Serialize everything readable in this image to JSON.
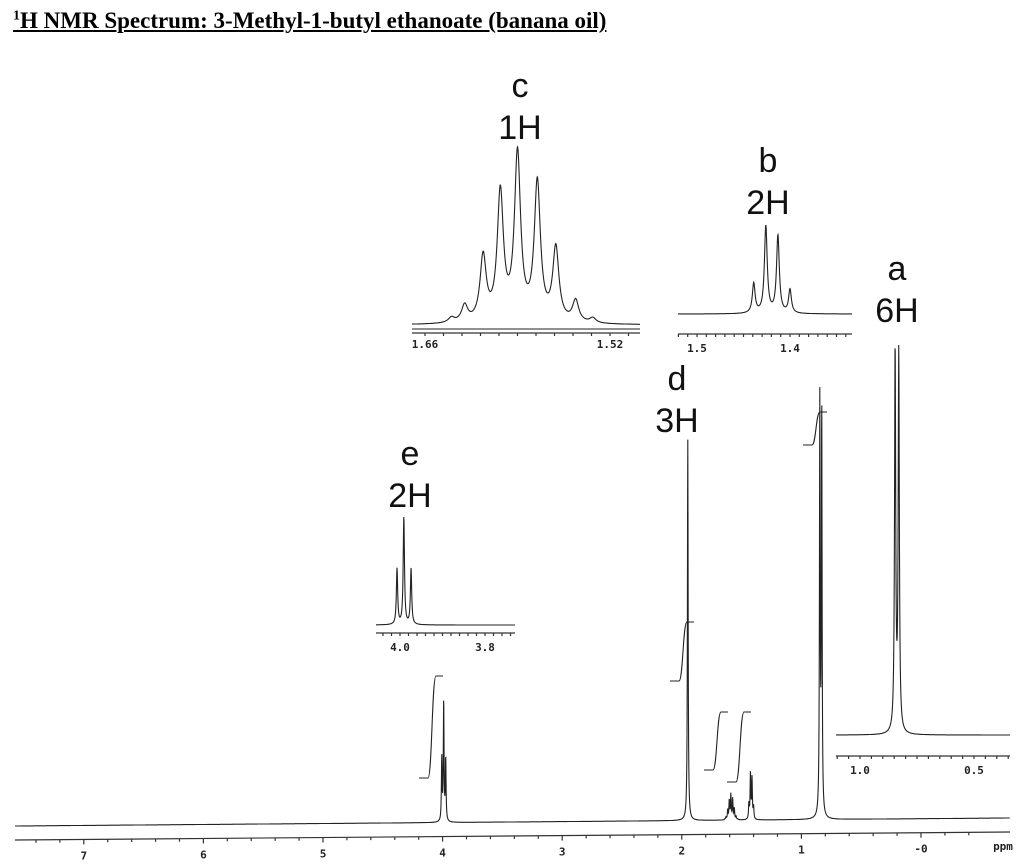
{
  "chart_data": {
    "type": "line",
    "title_sup": "1",
    "title": "H NMR Spectrum: 3-Methyl-1-butyl ethanoate (banana oil)",
    "xlabel": "ppm",
    "x_axis": {
      "reversed": true,
      "range": [
        7.7,
        -0.7
      ],
      "ticks": [
        "7",
        "6",
        "5",
        "4",
        "3",
        "2",
        "1",
        "-0"
      ],
      "tick_values": [
        7,
        6,
        5,
        4,
        3,
        2,
        1,
        0
      ]
    },
    "grid": false,
    "signals": [
      {
        "label": "a",
        "protons": "6H",
        "main_height": 100,
        "lines": [
          {
            "ppm": 0.846,
            "rel": 1.0
          },
          {
            "ppm": 0.83,
            "rel": 0.98
          }
        ]
      },
      {
        "label": "b",
        "protons": "2H",
        "main_height": 11,
        "lines": [
          {
            "ppm": 1.439,
            "rel": 0.34
          },
          {
            "ppm": 1.426,
            "rel": 1.0
          },
          {
            "ppm": 1.413,
            "rel": 0.89
          },
          {
            "ppm": 1.4,
            "rel": 0.27
          }
        ]
      },
      {
        "label": "c",
        "protons": "1H",
        "main_height": 6,
        "lines": [
          {
            "ppm": 1.64,
            "rel": 0.03
          },
          {
            "ppm": 1.63,
            "rel": 0.1
          },
          {
            "ppm": 1.616,
            "rel": 0.39
          },
          {
            "ppm": 1.603,
            "rel": 0.77
          },
          {
            "ppm": 1.59,
            "rel": 1.0
          },
          {
            "ppm": 1.575,
            "rel": 0.83
          },
          {
            "ppm": 1.561,
            "rel": 0.44
          },
          {
            "ppm": 1.546,
            "rel": 0.13
          },
          {
            "ppm": 1.533,
            "rel": 0.03
          }
        ]
      },
      {
        "label": "d",
        "protons": "3H",
        "main_height": 92,
        "lines": [
          {
            "ppm": 1.95,
            "rel": 1.0
          }
        ]
      },
      {
        "label": "e",
        "protons": "2H",
        "main_height": 29,
        "lines": [
          {
            "ppm": 4.007,
            "rel": 0.52
          },
          {
            "ppm": 3.991,
            "rel": 1.0
          },
          {
            "ppm": 3.974,
            "rel": 0.52
          }
        ]
      }
    ],
    "insets": [
      {
        "signal": "c",
        "range": [
          1.66,
          1.52
        ],
        "tick_labels": [
          "1.66",
          "1.52"
        ],
        "tick_values": [
          1.66,
          1.52
        ]
      },
      {
        "signal": "b",
        "range": [
          1.53,
          1.33
        ],
        "tick_labels": [
          "1.5",
          "1.4"
        ],
        "tick_values": [
          1.5,
          1.4
        ]
      },
      {
        "signal": "a",
        "range": [
          1.03,
          0.44
        ],
        "tick_labels": [
          "1.0",
          "0.5"
        ],
        "tick_values": [
          1.0,
          0.5
        ]
      },
      {
        "signal": "e",
        "range": [
          4.06,
          3.73
        ],
        "tick_labels": [
          "4.0",
          "3.8"
        ],
        "tick_values": [
          4.0,
          3.8
        ]
      }
    ]
  }
}
